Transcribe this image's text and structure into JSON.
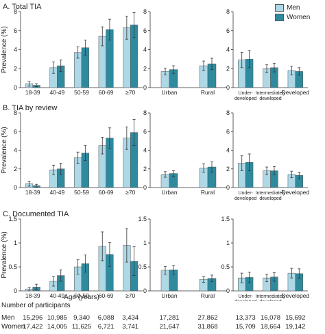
{
  "legend": [
    {
      "label": "Men",
      "color": "#aed8e6"
    },
    {
      "label": "Women",
      "color": "#2f8a9e"
    }
  ],
  "ylabel": "Prevalence (%)",
  "xlabel_age": "Age (years)",
  "chart_data": [
    {
      "type": "bar",
      "title": "A. Total TIA",
      "ylim": [
        0,
        8
      ],
      "ticks": [
        0,
        2,
        4,
        6,
        8
      ],
      "groups": [
        {
          "categories": [
            "18-39",
            "40-49",
            "50-59",
            "60-69",
            "≥70"
          ],
          "series": [
            {
              "name": "Men",
              "values": [
                0.4,
                2.1,
                3.7,
                5.4,
                6.3
              ],
              "err": [
                0.25,
                0.6,
                0.6,
                1.0,
                1.2
              ]
            },
            {
              "name": "Women",
              "values": [
                0.25,
                2.3,
                4.2,
                6.1,
                6.6
              ],
              "err": [
                0.15,
                0.6,
                0.8,
                1.1,
                1.3
              ]
            }
          ]
        },
        {
          "categories": [
            "Urban",
            "Rural"
          ],
          "series": [
            {
              "name": "Men",
              "values": [
                1.7,
                2.3
              ],
              "err": [
                0.35,
                0.5
              ]
            },
            {
              "name": "Women",
              "values": [
                1.9,
                2.5
              ],
              "err": [
                0.4,
                0.6
              ]
            }
          ]
        },
        {
          "categories": [
            "Under-\ndeveloped",
            "Intermediately\ndeveloped",
            "Developed"
          ],
          "series": [
            {
              "name": "Men",
              "values": [
                2.9,
                2.0,
                1.8
              ],
              "err": [
                0.8,
                0.4,
                0.45
              ]
            },
            {
              "name": "Women",
              "values": [
                3.0,
                2.1,
                1.7
              ],
              "err": [
                0.9,
                0.45,
                0.4
              ]
            }
          ]
        }
      ]
    },
    {
      "type": "bar",
      "title": "B. TIA by review",
      "ylim": [
        0,
        8
      ],
      "ticks": [
        0,
        2,
        4,
        6,
        8
      ],
      "groups": [
        {
          "categories": [
            "18-39",
            "40-49",
            "50-59",
            "60-69",
            "≥70"
          ],
          "series": [
            {
              "name": "Men",
              "values": [
                0.4,
                1.9,
                3.2,
                4.5,
                5.3
              ],
              "err": [
                0.25,
                0.5,
                0.6,
                0.9,
                1.2
              ]
            },
            {
              "name": "Women",
              "values": [
                0.2,
                2.0,
                3.7,
                5.3,
                5.9
              ],
              "err": [
                0.15,
                0.6,
                0.8,
                1.1,
                1.4
              ]
            }
          ]
        },
        {
          "categories": [
            "Urban",
            "Rural"
          ],
          "series": [
            {
              "name": "Men",
              "values": [
                1.4,
                2.1
              ],
              "err": [
                0.3,
                0.45
              ]
            },
            {
              "name": "Women",
              "values": [
                1.5,
                2.2
              ],
              "err": [
                0.3,
                0.55
              ]
            }
          ]
        },
        {
          "categories": [
            "Under-\ndeveloped",
            "Intermediately\ndeveloped",
            "Developed"
          ],
          "series": [
            {
              "name": "Men",
              "values": [
                2.6,
                1.8,
                1.4
              ],
              "err": [
                0.8,
                0.4,
                0.35
              ]
            },
            {
              "name": "Women",
              "values": [
                2.7,
                1.8,
                1.3
              ],
              "err": [
                0.9,
                0.45,
                0.35
              ]
            }
          ]
        }
      ]
    },
    {
      "type": "bar",
      "title": "C. Documented TIA",
      "ylim": [
        0,
        1.5
      ],
      "ticks": [
        0,
        0.5,
        1,
        1.5
      ],
      "groups": [
        {
          "categories": [
            "18-39",
            "40-49",
            "50-59",
            "60-69",
            "≥70"
          ],
          "series": [
            {
              "name": "Men",
              "values": [
                0.04,
                0.2,
                0.5,
                0.93,
                0.95
              ],
              "err": [
                0.04,
                0.1,
                0.15,
                0.3,
                0.35
              ]
            },
            {
              "name": "Women",
              "values": [
                0.08,
                0.32,
                0.57,
                0.76,
                0.62
              ],
              "err": [
                0.06,
                0.12,
                0.18,
                0.25,
                0.3
              ]
            }
          ]
        },
        {
          "categories": [
            "Urban",
            "Rural"
          ],
          "series": [
            {
              "name": "Men",
              "values": [
                0.43,
                0.24
              ],
              "err": [
                0.08,
                0.06
              ]
            },
            {
              "name": "Women",
              "values": [
                0.44,
                0.26
              ],
              "err": [
                0.09,
                0.07
              ]
            }
          ]
        },
        {
          "categories": [
            "Under-\ndeveloped",
            "Intermediately\ndeveloped",
            "Developed"
          ],
          "series": [
            {
              "name": "Men",
              "values": [
                0.27,
                0.27,
                0.37
              ],
              "err": [
                0.1,
                0.08,
                0.1
              ]
            },
            {
              "name": "Women",
              "values": [
                0.28,
                0.29,
                0.36
              ],
              "err": [
                0.11,
                0.09,
                0.1
              ]
            }
          ]
        }
      ]
    }
  ],
  "participants": {
    "title": "Number of participants",
    "rows": [
      {
        "label": "Men",
        "values": [
          "15,296",
          "10,985",
          "9,340",
          "6,088",
          "3,434",
          "17,281",
          "27,862",
          "13,373",
          "16,078",
          "15,692"
        ]
      },
      {
        "label": "Women",
        "values": [
          "17,422",
          "14,005",
          "11,625",
          "6,721",
          "3,741",
          "21,647",
          "31,868",
          "15,709",
          "18,664",
          "19,142"
        ]
      }
    ]
  }
}
